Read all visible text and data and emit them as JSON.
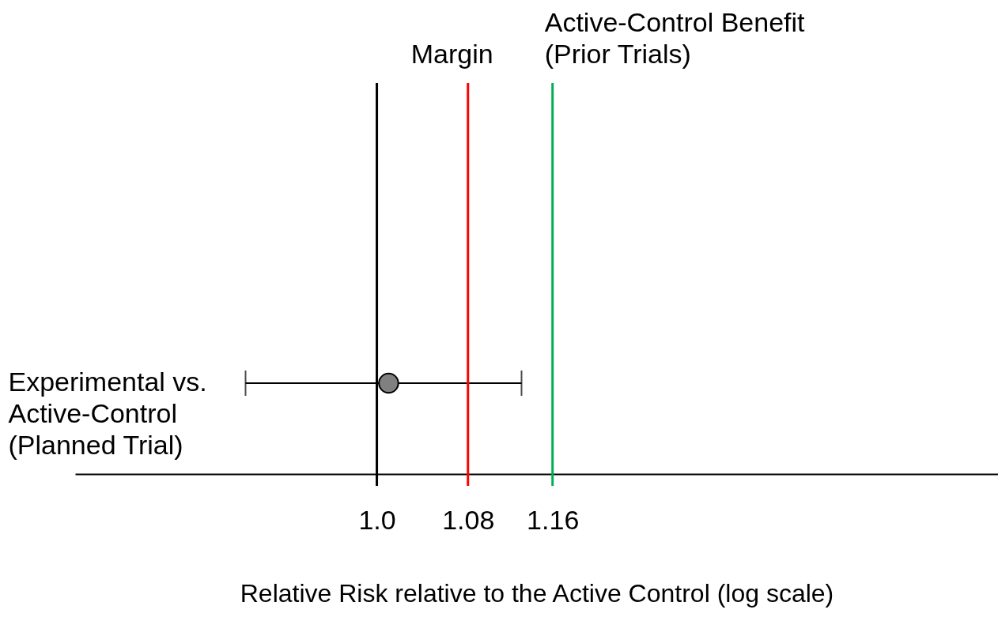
{
  "chart_data": {
    "type": "scatter",
    "orientation": "horizontal",
    "log": "x",
    "xlabel": "Relative Risk relative to the Active Control (log scale)",
    "categories": [
      "Experimental vs. Active-Control (Planned Trial)"
    ],
    "series": [
      {
        "color": "#808080",
        "values": [
          1.01
        ],
        "errors": [
          [
            0.895,
            1.13
          ]
        ]
      }
    ],
    "marker": "circle",
    "xlim": [
      0.775,
      1.69
    ],
    "xticks": [
      {
        "value": 1.0,
        "label": "1.0"
      },
      1.08,
      1.16
    ],
    "ref_lines": [
      {
        "axis": "x",
        "value": 1.0,
        "color": "#000000"
      },
      {
        "axis": "x",
        "value": 1.08,
        "label": "Margin",
        "color": "#ff0000"
      },
      {
        "axis": "x",
        "value": 1.16,
        "label": "Active-Control Benefit (Prior Trials)",
        "color": "#00b050"
      }
    ]
  }
}
